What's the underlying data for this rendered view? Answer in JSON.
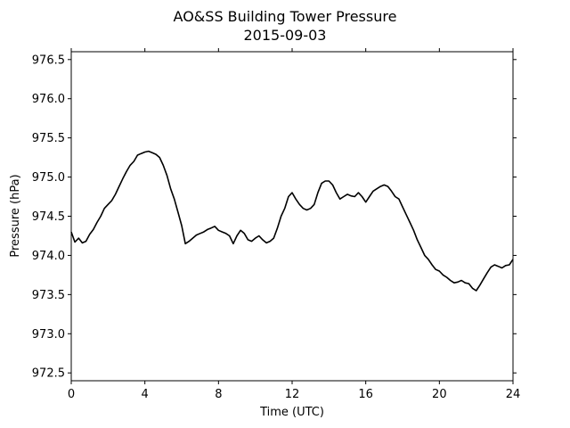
{
  "chart_data": {
    "type": "line",
    "title": "AO&SS Building Tower Pressure",
    "subtitle": "2015-09-03",
    "xlabel": "Time (UTC)",
    "ylabel": "Pressure (hPa)",
    "xlim": [
      0,
      24
    ],
    "ylim": [
      972.4,
      976.6
    ],
    "x_ticks": [
      0,
      4,
      8,
      12,
      16,
      20,
      24
    ],
    "x_tick_labels": [
      "0",
      "4",
      "8",
      "12",
      "16",
      "20",
      "24"
    ],
    "y_ticks": [
      972.5,
      973.0,
      973.5,
      974.0,
      974.5,
      975.0,
      975.5,
      976.0,
      976.5
    ],
    "y_tick_labels": [
      "972.5",
      "973.0",
      "973.5",
      "974.0",
      "974.5",
      "975.0",
      "975.5",
      "976.0",
      "976.5"
    ],
    "grid": false,
    "legend": "none",
    "series": [
      {
        "color": "#000000",
        "x": [
          0,
          0.2,
          0.4,
          0.6,
          0.8,
          1.0,
          1.2,
          1.4,
          1.6,
          1.8,
          2.0,
          2.2,
          2.4,
          2.6,
          2.8,
          3.0,
          3.2,
          3.4,
          3.6,
          3.8,
          4.0,
          4.2,
          4.4,
          4.6,
          4.8,
          5.0,
          5.2,
          5.4,
          5.6,
          5.8,
          6.0,
          6.2,
          6.4,
          6.6,
          6.8,
          7.0,
          7.2,
          7.4,
          7.6,
          7.8,
          8.0,
          8.2,
          8.4,
          8.6,
          8.8,
          9.0,
          9.2,
          9.4,
          9.6,
          9.8,
          10.0,
          10.2,
          10.4,
          10.6,
          10.8,
          11.0,
          11.2,
          11.4,
          11.6,
          11.8,
          12.0,
          12.2,
          12.4,
          12.6,
          12.8,
          13.0,
          13.2,
          13.4,
          13.6,
          13.8,
          14.0,
          14.2,
          14.4,
          14.6,
          14.8,
          15.0,
          15.2,
          15.4,
          15.6,
          15.8,
          16.0,
          16.2,
          16.4,
          16.6,
          16.8,
          17.0,
          17.2,
          17.4,
          17.6,
          17.8,
          18.0,
          18.2,
          18.4,
          18.6,
          18.8,
          19.0,
          19.2,
          19.4,
          19.6,
          19.8,
          20.0,
          20.2,
          20.4,
          20.6,
          20.8,
          21.0,
          21.2,
          21.4,
          21.6,
          21.8,
          22.0,
          22.2,
          22.4,
          22.6,
          22.8,
          23.0,
          23.2,
          23.4,
          23.6,
          23.8,
          24.0
        ],
        "y": [
          974.3,
          974.17,
          974.22,
          974.16,
          974.18,
          974.27,
          974.33,
          974.42,
          974.5,
          974.6,
          974.65,
          974.7,
          974.78,
          974.88,
          974.98,
          975.07,
          975.15,
          975.2,
          975.28,
          975.3,
          975.32,
          975.33,
          975.31,
          975.29,
          975.25,
          975.15,
          975.02,
          974.85,
          974.72,
          974.55,
          974.38,
          974.15,
          974.18,
          974.22,
          974.26,
          974.28,
          974.3,
          974.33,
          974.35,
          974.37,
          974.32,
          974.3,
          974.28,
          974.25,
          974.15,
          974.25,
          974.32,
          974.28,
          974.2,
          974.18,
          974.22,
          974.25,
          974.2,
          974.16,
          974.18,
          974.22,
          974.35,
          974.5,
          974.6,
          974.75,
          974.8,
          974.72,
          974.65,
          974.6,
          974.58,
          974.6,
          974.65,
          974.8,
          974.92,
          974.95,
          974.95,
          974.9,
          974.8,
          974.72,
          974.75,
          974.78,
          974.76,
          974.75,
          974.8,
          974.75,
          974.68,
          974.75,
          974.82,
          974.85,
          974.88,
          974.9,
          974.88,
          974.82,
          974.75,
          974.72,
          974.62,
          974.52,
          974.42,
          974.32,
          974.2,
          974.1,
          974.0,
          973.95,
          973.88,
          973.82,
          973.8,
          973.75,
          973.72,
          973.68,
          973.65,
          973.66,
          973.68,
          973.65,
          973.64,
          973.58,
          973.55,
          973.62,
          973.7,
          973.78,
          973.85,
          973.88,
          973.86,
          973.84,
          973.87,
          973.88,
          973.95
        ]
      }
    ]
  }
}
